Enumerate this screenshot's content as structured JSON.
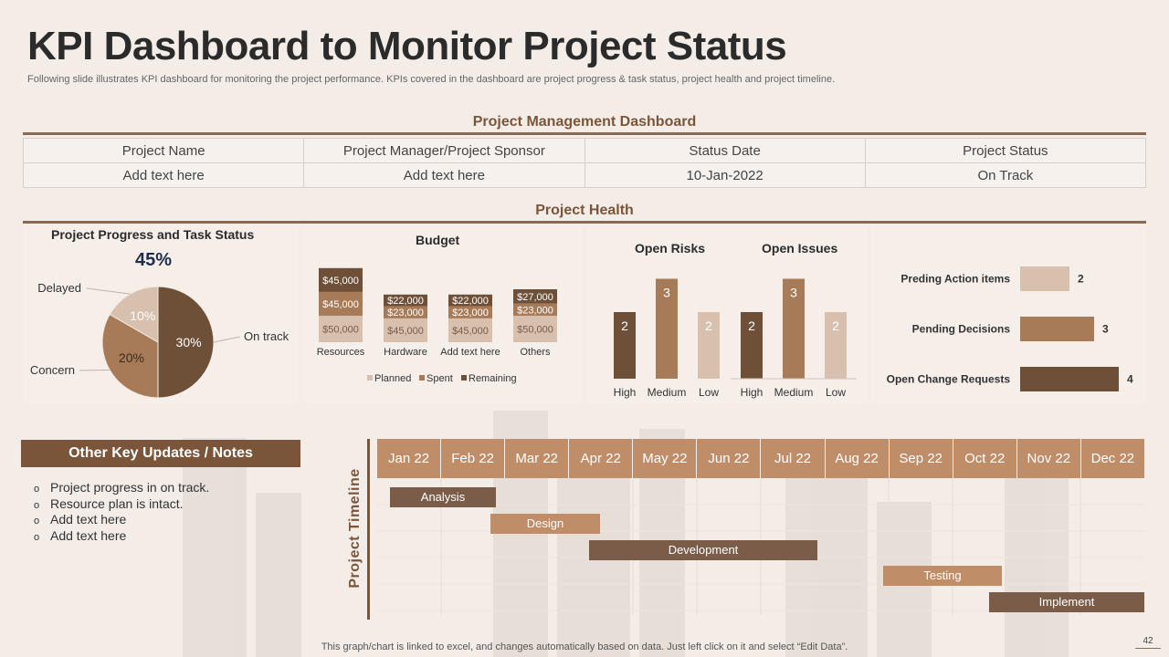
{
  "header": {
    "title": "KPI Dashboard to Monitor Project Status",
    "subtitle": "Following slide illustrates KPI dashboard for monitoring the project performance. KPIs covered in the dashboard are project progress & task status, project health and project timeline."
  },
  "pm_dashboard": {
    "title": "Project Management Dashboard",
    "headers": [
      "Project Name",
      "Project Manager/Project Sponsor",
      "Status Date",
      "Project Status"
    ],
    "row": [
      "Add text here",
      "Add text here",
      "10-Jan-2022",
      "On Track"
    ]
  },
  "project_health": {
    "title": "Project Health"
  },
  "colors": {
    "dark": "#6e5039",
    "mid": "#a87b58",
    "light": "#d7c1ae",
    "accent": "#7a5539",
    "month_bg": "#bf8d68"
  },
  "chart_data": [
    {
      "type": "pie",
      "title": "Project Progress and Task Status",
      "headline": "45%",
      "slices": [
        {
          "label": "On track",
          "value": 30,
          "display": "30%"
        },
        {
          "label": "Concern",
          "value": 20,
          "display": "20%"
        },
        {
          "label": "Delayed",
          "value": 10,
          "display": "10%"
        }
      ]
    },
    {
      "type": "bar",
      "stacked": true,
      "title": "Budget",
      "categories": [
        "Resources",
        "Hardware",
        "Add text here",
        "Others"
      ],
      "series": [
        {
          "name": "Planned",
          "values": [
            50000,
            45000,
            45000,
            50000
          ],
          "labels": [
            "$50,000",
            "$45,000",
            "$45,000",
            "$50,000"
          ]
        },
        {
          "name": "Spent",
          "values": [
            45000,
            23000,
            23000,
            23000
          ],
          "labels": [
            "$45,000",
            "$23,000",
            "$23,000",
            "$23,000"
          ]
        },
        {
          "name": "Remaining",
          "values": [
            45000,
            22000,
            22000,
            27000
          ],
          "labels": [
            "$45,000",
            "$22,000",
            "$22,000",
            "$27,000"
          ]
        }
      ],
      "legend": "bottom"
    },
    {
      "type": "bar",
      "title": "Open Risks",
      "categories": [
        "High",
        "Medium",
        "Low"
      ],
      "values": [
        2,
        3,
        2
      ]
    },
    {
      "type": "bar",
      "title": "Open Issues",
      "categories": [
        "High",
        "Medium",
        "Low"
      ],
      "values": [
        2,
        3,
        2
      ]
    },
    {
      "type": "bar",
      "orientation": "horizontal",
      "categories": [
        "Preding Action items",
        "Pending Decisions",
        "Open Change Requests"
      ],
      "values": [
        2,
        3,
        4
      ]
    }
  ],
  "notes": {
    "title": "Other Key Updates / Notes",
    "bullet": "o",
    "items": [
      "Project progress in on track.",
      "Resource plan is intact.",
      "Add text here",
      "Add text here"
    ]
  },
  "timeline": {
    "label": "Project Timeline",
    "months": [
      "Jan 22",
      "Feb 22",
      "Mar 22",
      "Apr 22",
      "May 22",
      "Jun 22",
      "Jul 22",
      "Aug 22",
      "Sep 22",
      "Oct 22",
      "Nov 22",
      "Dec 22"
    ],
    "tasks": [
      {
        "name": "Analysis",
        "start_month": "Jan 22",
        "end_month": "Feb 22",
        "color": "#7a5c48"
      },
      {
        "name": "Design",
        "start_month": "Mar 22",
        "end_month": "Apr 22",
        "color": "#bf8d68"
      },
      {
        "name": "Development",
        "start_month": "May 22",
        "end_month": "Jul 22",
        "color": "#7a5c48"
      },
      {
        "name": "Testing",
        "start_month": "Sep 22",
        "end_month": "Oct 22",
        "color": "#bf8d68"
      },
      {
        "name": "Implement",
        "start_month": "Nov 22",
        "end_month": "Dec 22",
        "color": "#7a5c48"
      }
    ]
  },
  "footer": {
    "text": "This graph/chart is linked to excel, and changes automatically based on data. Just left click on it and select “Edit Data”.",
    "page": "42"
  }
}
